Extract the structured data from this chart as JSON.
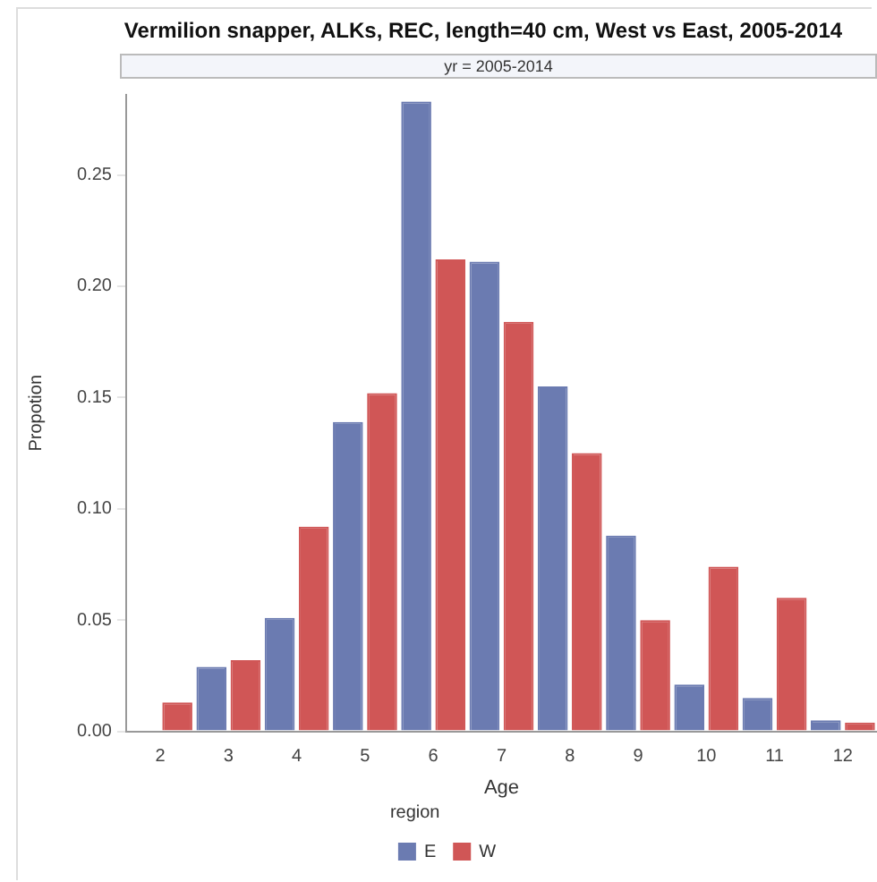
{
  "chart_data": {
    "type": "bar",
    "title": "Vermilion snapper, ALKs, REC, length=40 cm,  West vs East, 2005-2014",
    "subtitle": "yr = 2005-2014",
    "xlabel": "Age",
    "ylabel": "Propotion",
    "legend_title": "region",
    "categories": [
      "2",
      "3",
      "4",
      "5",
      "6",
      "7",
      "8",
      "9",
      "10",
      "11",
      "12"
    ],
    "series": [
      {
        "name": "E",
        "color": "#6b7bb1",
        "values": [
          null,
          0.029,
          0.051,
          0.139,
          0.283,
          0.211,
          0.155,
          0.088,
          0.021,
          0.015,
          0.005
        ]
      },
      {
        "name": "W",
        "color": "#d05656",
        "values": [
          0.013,
          0.032,
          0.092,
          0.152,
          0.212,
          0.184,
          0.125,
          0.05,
          0.074,
          0.06,
          0.004
        ]
      }
    ],
    "ylim": [
      0,
      0.286
    ],
    "yticks": [
      {
        "value": 0,
        "label": "0.00"
      },
      0.05,
      {
        "value": 0.1,
        "label": "0.10"
      },
      0.15,
      {
        "value": 0.2,
        "label": "0.20"
      },
      0.25
    ],
    "grid": false,
    "legend": "bottom"
  }
}
